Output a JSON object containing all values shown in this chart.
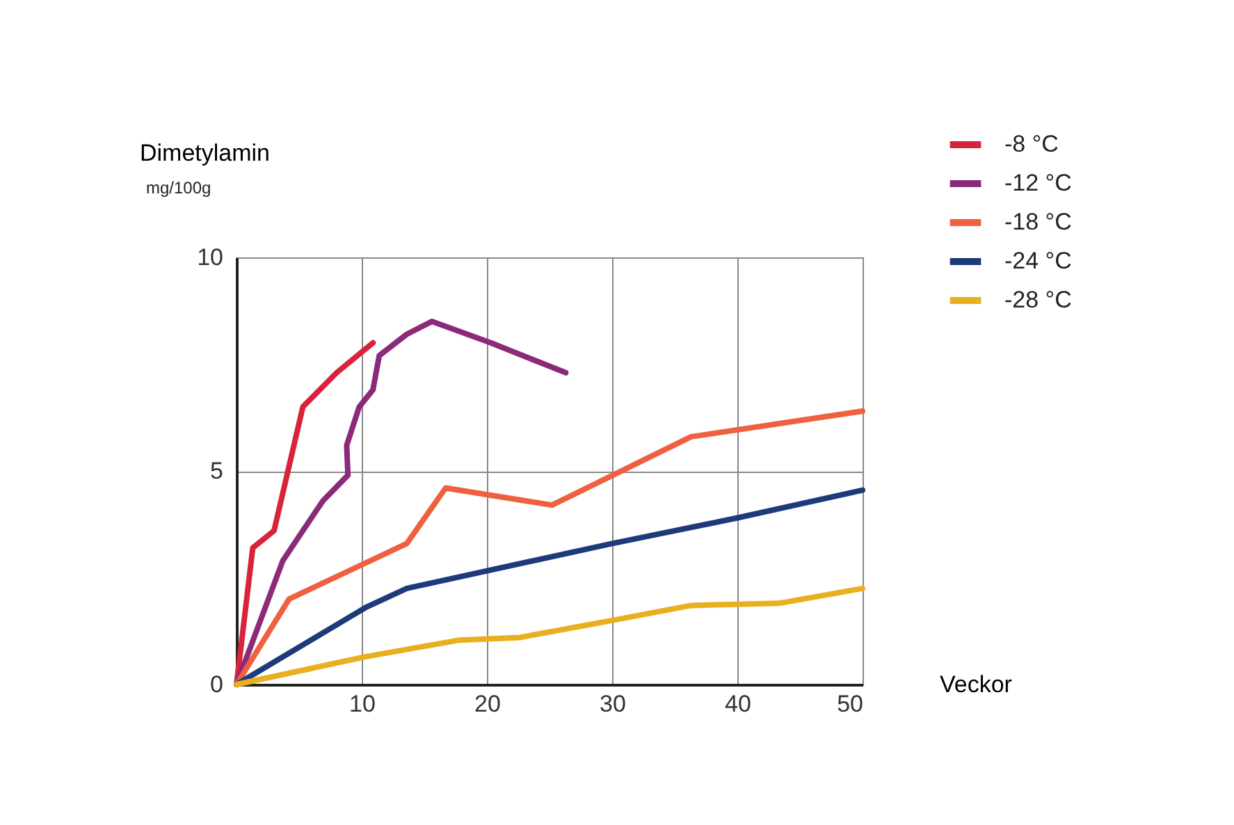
{
  "chart_data": {
    "type": "line",
    "xlabel": "Veckor",
    "ylabel": "Dimetylamin",
    "annotations": [
      "mg/100g"
    ],
    "xlim": [
      0,
      50
    ],
    "xticks": [
      {
        "value": 0,
        "label": null
      },
      10,
      20,
      30,
      40,
      50
    ],
    "ylim": [
      0,
      10
    ],
    "yticks": [
      0,
      5,
      10
    ],
    "grid": true,
    "legend": "top right",
    "line_style": "solid",
    "series": [
      {
        "name": "-8 °C",
        "color": "#d9233a",
        "x": [
          0,
          1.3,
          3,
          5.3,
          8,
          10.9
        ],
        "values": [
          0,
          3.2,
          3.6,
          6.5,
          7.3,
          8.0
        ]
      },
      {
        "name": "-12 °C",
        "color": "#8a2a78",
        "x": [
          0,
          3.7,
          6.9,
          8.9,
          8.8,
          9.8,
          10.9,
          11.4,
          13.6,
          15.6,
          20.3,
          26.3
        ],
        "values": [
          0,
          2.9,
          4.3,
          4.9,
          5.6,
          6.5,
          6.9,
          7.7,
          8.2,
          8.5,
          8.0,
          7.3
        ]
      },
      {
        "name": "-18 °C",
        "color": "#ee6040",
        "x": [
          0,
          4.2,
          13.6,
          16.7,
          25.2,
          36.3,
          50
        ],
        "values": [
          0,
          2.0,
          3.3,
          4.6,
          4.2,
          5.8,
          6.4
        ]
      },
      {
        "name": "-24 °C",
        "color": "#1f3a7a",
        "x": [
          0,
          10.3,
          13.6,
          30,
          40,
          50
        ],
        "values": [
          0,
          1.8,
          2.25,
          3.3,
          3.9,
          4.55
        ]
      },
      {
        "name": "-28 °C",
        "color": "#e8b020",
        "x": [
          0,
          10.3,
          17.8,
          22.6,
          30,
          36.3,
          43.3,
          50
        ],
        "values": [
          0,
          0.65,
          1.04,
          1.1,
          1.5,
          1.85,
          1.9,
          2.25
        ]
      }
    ]
  }
}
